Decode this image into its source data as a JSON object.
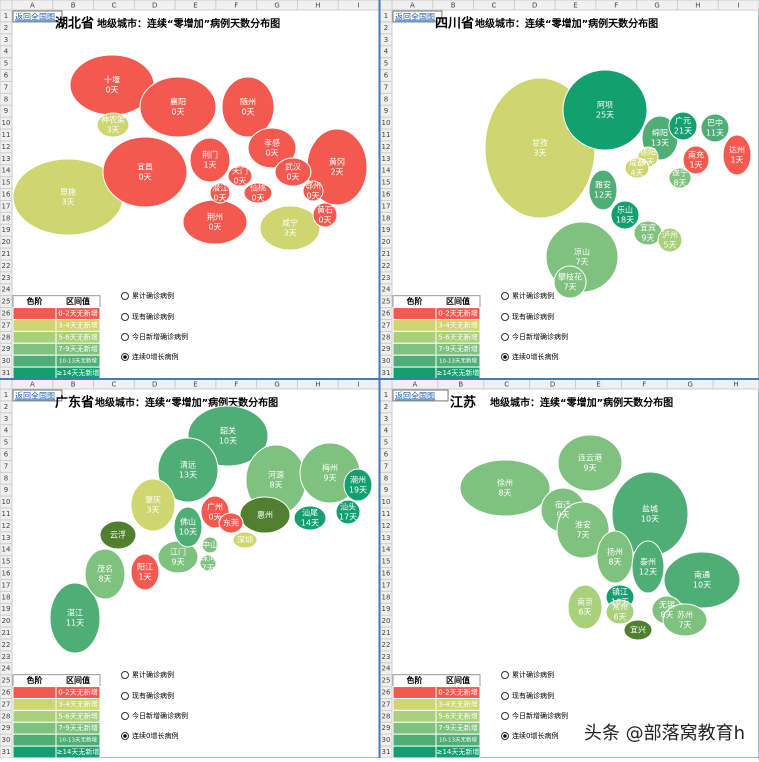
{
  "row_numbers": [
    "1",
    "2",
    "3",
    "4",
    "5",
    "6",
    "7",
    "8",
    "9",
    "10",
    "11",
    "12",
    "13",
    "14",
    "15",
    "16",
    "17",
    "18",
    "19",
    "20",
    "21",
    "22",
    "23",
    "24",
    "25",
    "26",
    "27",
    "28",
    "29",
    "30",
    "31"
  ],
  "legend": {
    "headers": [
      "色阶",
      "区间值"
    ],
    "items": [
      {
        "label": "0-2天无新增",
        "color": "#f4594f"
      },
      {
        "label": "3-4天无新增",
        "color": "#cdd66f"
      },
      {
        "label": "5-6天无新增",
        "color": "#a9d07a"
      },
      {
        "label": "7-9天无新增",
        "color": "#7fc17e"
      },
      {
        "label": "10-13天无新增",
        "color": "#4fae75"
      },
      {
        "label": "≥14天无新增",
        "color": "#13a06f"
      }
    ]
  },
  "options": [
    "累计确诊病例",
    "现有确诊病例",
    "今日新增确诊病例",
    "连续0增长病例"
  ],
  "selected_option": 3,
  "watermark": "头条 @部落窝教育h",
  "panels": [
    {
      "link": "返回全国图",
      "province": "湖北省",
      "subtitle": "地级城市：连续“零增加”病例天数分布图",
      "columns": [
        "A",
        "B",
        "C",
        "D",
        "E",
        "F",
        "G",
        "H",
        "I"
      ],
      "cities": [
        {
          "name": "恩施",
          "days": "3天",
          "color": "#cdd66f"
        },
        {
          "name": "十堰",
          "days": "0天",
          "color": "#f4594f"
        },
        {
          "name": "神农架",
          "days": "3天",
          "color": "#cdd66f"
        },
        {
          "name": "襄阳",
          "days": "0天",
          "color": "#f4594f"
        },
        {
          "name": "随州",
          "days": "0天",
          "color": "#f4594f"
        },
        {
          "name": "宜昌",
          "days": "0天",
          "color": "#f4594f"
        },
        {
          "name": "荆门",
          "days": "1天",
          "color": "#f4594f"
        },
        {
          "name": "孝感",
          "days": "0天",
          "color": "#f4594f"
        },
        {
          "name": "黄冈",
          "days": "2天",
          "color": "#f4594f"
        },
        {
          "name": "荆州",
          "days": "0天",
          "color": "#f4594f"
        },
        {
          "name": "咸宁",
          "days": "3天",
          "color": "#cdd66f"
        },
        {
          "name": "天门",
          "days": "0天",
          "color": "#f4594f"
        },
        {
          "name": "武汉",
          "days": "0天",
          "color": "#f4594f"
        },
        {
          "name": "潜江",
          "days": "0天",
          "color": "#f4594f"
        },
        {
          "name": "仙桃",
          "days": "0天",
          "color": "#f4594f"
        },
        {
          "name": "鄂州",
          "days": "0天",
          "color": "#f4594f"
        },
        {
          "name": "黄石",
          "days": "0天",
          "color": "#f4594f"
        }
      ]
    },
    {
      "link": "返回全国图",
      "province": "四川省",
      "subtitle": "地级城市：连续“零增加”病例天数分布图",
      "columns": [
        "A",
        "B",
        "C",
        "D",
        "E",
        "F",
        "G",
        "H",
        "I"
      ],
      "cities": [
        {
          "name": "甘孜",
          "days": "3天",
          "color": "#cdd66f"
        },
        {
          "name": "阿坝",
          "days": "25天",
          "color": "#13a06f"
        },
        {
          "name": "凉山",
          "days": "7天",
          "color": "#7fc17e"
        },
        {
          "name": "攀枝花",
          "days": "7天",
          "color": "#7fc17e"
        },
        {
          "name": "绵阳",
          "days": "13天",
          "color": "#4fae75"
        },
        {
          "name": "广元",
          "days": "21天",
          "color": "#13a06f"
        },
        {
          "name": "巴中",
          "days": "11天",
          "color": "#4fae75"
        },
        {
          "name": "达州",
          "days": "1天",
          "color": "#f4594f"
        },
        {
          "name": "南充",
          "days": "1天",
          "color": "#f4594f"
        },
        {
          "name": "德阳",
          "days": "4天",
          "color": "#cdd66f"
        },
        {
          "name": "成都",
          "days": "4天",
          "color": "#cdd66f"
        },
        {
          "name": "遂宁",
          "days": "8天",
          "color": "#7fc17e"
        },
        {
          "name": "雅安",
          "days": "12天",
          "color": "#4fae75"
        },
        {
          "name": "乐山",
          "days": "18天",
          "color": "#13a06f"
        },
        {
          "name": "宜宾",
          "days": "9天",
          "color": "#7fc17e"
        },
        {
          "name": "泸州",
          "days": "5天",
          "color": "#a9d07a"
        }
      ]
    },
    {
      "link": "返回全国图",
      "province": "广东省",
      "subtitle": "地级城市：连续“零增加”病例天数分布图",
      "columns": [
        "A",
        "B",
        "C",
        "D",
        "E",
        "F",
        "G",
        "H",
        "I"
      ],
      "cities": [
        {
          "name": "韶关",
          "days": "10天",
          "color": "#4fae75"
        },
        {
          "name": "清远",
          "days": "13天",
          "color": "#4fae75"
        },
        {
          "name": "河源",
          "days": "8天",
          "color": "#7fc17e"
        },
        {
          "name": "梅州",
          "days": "9天",
          "color": "#7fc17e"
        },
        {
          "name": "潮州",
          "days": "19天",
          "color": "#13a06f"
        },
        {
          "name": "湛江",
          "days": "11天",
          "color": "#4fae75"
        },
        {
          "name": "茂名",
          "days": "8天",
          "color": "#7fc17e"
        },
        {
          "name": "阳江",
          "days": "1天",
          "color": "#f4594f"
        },
        {
          "name": "肇庆",
          "days": "3天",
          "color": "#cdd66f"
        },
        {
          "name": "云浮",
          "days": "",
          "color": "#4f7f2f"
        },
        {
          "name": "江门",
          "days": "9天",
          "color": "#7fc17e"
        },
        {
          "name": "佛山",
          "days": "10天",
          "color": "#4fae75"
        },
        {
          "name": "广州",
          "days": "0天",
          "color": "#f4594f"
        },
        {
          "name": "惠州",
          "days": "",
          "color": "#4f7f2f"
        },
        {
          "name": "东莞",
          "days": "",
          "color": "#f4594f"
        },
        {
          "name": "中山",
          "days": "",
          "color": "#7fc17e"
        },
        {
          "name": "珠海",
          "days": "7天",
          "color": "#7fc17e"
        },
        {
          "name": "深圳",
          "days": "",
          "color": "#cdd66f"
        },
        {
          "name": "汕尾",
          "days": "14天",
          "color": "#13a06f"
        },
        {
          "name": "汕头",
          "days": "17天",
          "color": "#13a06f"
        }
      ]
    },
    {
      "link": "返回全国图",
      "province": "江苏",
      "subtitle": "地级城市：连续“零增加”病例天数分布图",
      "columns": [
        "A",
        "B",
        "C",
        "D",
        "E",
        "F",
        "G",
        "H"
      ],
      "cities": [
        {
          "name": "徐州",
          "days": "8天",
          "color": "#7fc17e"
        },
        {
          "name": "连云港",
          "days": "9天",
          "color": "#7fc17e"
        },
        {
          "name": "宿迁",
          "days": "9天",
          "color": "#7fc17e"
        },
        {
          "name": "盐城",
          "days": "10天",
          "color": "#4fae75"
        },
        {
          "name": "淮安",
          "days": "7天",
          "color": "#7fc17e"
        },
        {
          "name": "南通",
          "days": "10天",
          "color": "#4fae75"
        },
        {
          "name": "扬州",
          "days": "8天",
          "color": "#7fc17e"
        },
        {
          "name": "泰州",
          "days": "12天",
          "color": "#4fae75"
        },
        {
          "name": "南京",
          "days": "6天",
          "color": "#a9d07a"
        },
        {
          "name": "镇江",
          "days": "16天",
          "color": "#13a06f"
        },
        {
          "name": "常州",
          "days": "6天",
          "color": "#a9d07a"
        },
        {
          "name": "无锡",
          "days": "8天",
          "color": "#7fc17e"
        },
        {
          "name": "苏州",
          "days": "7天",
          "color": "#7fc17e"
        },
        {
          "name": "宜兴",
          "days": "",
          "color": "#4f7f2f"
        }
      ]
    }
  ]
}
